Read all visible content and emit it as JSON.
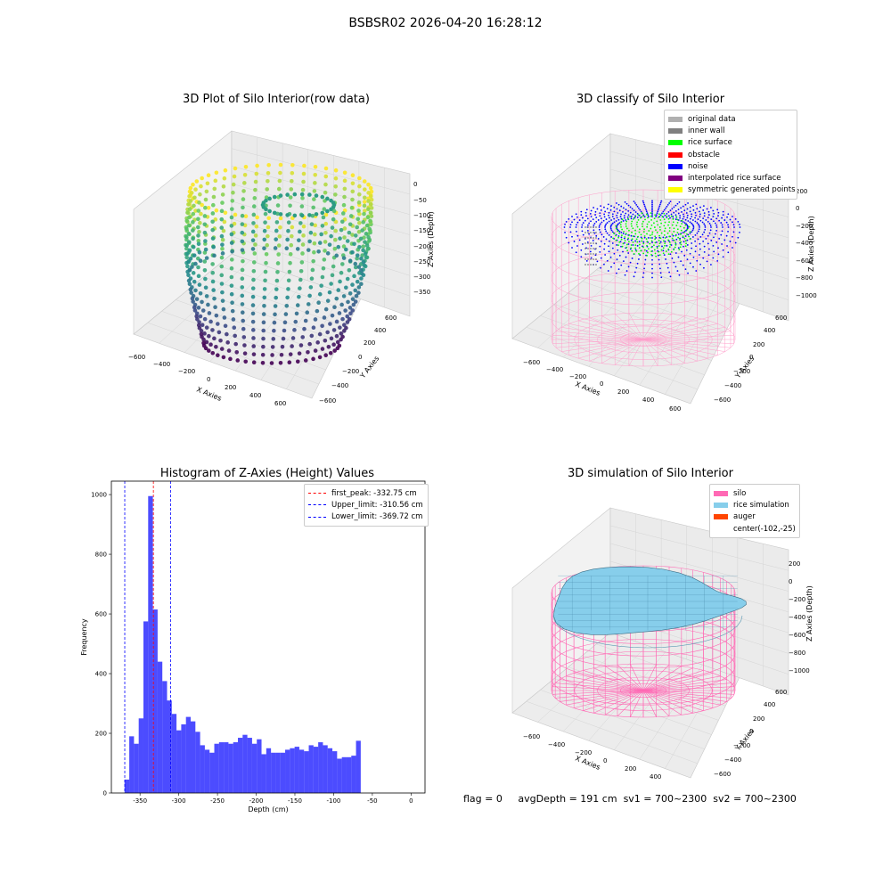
{
  "figure": {
    "suptitle": "BSBSR02 2026-04-20 16:28:12",
    "footer": {
      "flag": "flag = 0",
      "avg_depth": "avgDepth = 191 cm",
      "sv1": "sv1 = 700~2300",
      "sv2": "sv2 = 700~2300"
    }
  },
  "panels": {
    "raw": {
      "title": "3D Plot of Silo Interior(row data)",
      "xlabel": "X Axies",
      "ylabel": "Y Axies",
      "zlabel": "Z Axies (Depth)",
      "xticks": [
        "−600",
        "−400",
        "−200",
        "0",
        "200",
        "400",
        "600"
      ],
      "yticks": [
        "−600",
        "−400",
        "−200",
        "0",
        "200",
        "400",
        "600"
      ],
      "zticks": [
        "0",
        "−50",
        "−100",
        "−150",
        "−200",
        "−250",
        "−300",
        "−350"
      ]
    },
    "classify": {
      "title": "3D classify of Silo Interior",
      "xlabel": "X Axies",
      "ylabel": "Y Axies",
      "zlabel": "Z Axies (Depth)",
      "xticks": [
        "−600",
        "−400",
        "−200",
        "0",
        "200",
        "400",
        "600"
      ],
      "yticks": [
        "−600",
        "−400",
        "−200",
        "0",
        "200",
        "400",
        "600"
      ],
      "zticks": [
        "200",
        "0",
        "−200",
        "−400",
        "−600",
        "−800",
        "−1000"
      ],
      "legend": [
        {
          "label": "original data",
          "color": "#b0b0b0"
        },
        {
          "label": "inner wall",
          "color": "#808080"
        },
        {
          "label": "rice surface",
          "color": "#00ff00"
        },
        {
          "label": "obstacle",
          "color": "#ff0000"
        },
        {
          "label": "noise",
          "color": "#0000ff"
        },
        {
          "label": "interpolated rice surface",
          "color": "#800080"
        },
        {
          "label": "symmetric generated points",
          "color": "#ffff00"
        }
      ]
    },
    "simulation": {
      "title": "3D simulation of Silo Interior",
      "xlabel": "X Axies",
      "ylabel": "Y Axies",
      "zlabel": "Z Axies (Depth)",
      "xticks": [
        "−600",
        "−400",
        "−200",
        "0",
        "200",
        "400"
      ],
      "yticks": [
        "−600",
        "−400",
        "−200",
        "0",
        "200",
        "400",
        "600"
      ],
      "zticks": [
        "200",
        "0",
        "−200",
        "−400",
        "−600",
        "−800",
        "−1000"
      ],
      "legend": [
        {
          "label": "silo",
          "color": "#ff69b4"
        },
        {
          "label": "rice simulation",
          "color": "#87ceeb"
        },
        {
          "label": "auger",
          "color": "#ff4500"
        },
        {
          "label": "center(-102,-25)",
          "color": ""
        }
      ]
    }
  },
  "chart_data": {
    "type": "bar",
    "title": "Histogram of Z-Axies (Height) Values",
    "xlabel": "Depth (cm)",
    "ylabel": "Frequency",
    "xlim": [
      -387,
      18
    ],
    "ylim": [
      0,
      1045
    ],
    "bin_start": -370,
    "bin_width": 6.1,
    "values": [
      45,
      190,
      165,
      250,
      575,
      995,
      615,
      440,
      375,
      310,
      265,
      210,
      230,
      255,
      240,
      205,
      160,
      145,
      135,
      165,
      170,
      170,
      165,
      170,
      185,
      195,
      185,
      165,
      180,
      130,
      150,
      135,
      135,
      135,
      145,
      150,
      155,
      145,
      140,
      160,
      155,
      170,
      160,
      150,
      140,
      115,
      120,
      120,
      125,
      175
    ],
    "xticks": [
      -350,
      -300,
      -250,
      -200,
      -150,
      -100,
      -50,
      0
    ],
    "yticks": [
      0,
      200,
      400,
      600,
      800,
      1000
    ],
    "bar_color": "#0000ff",
    "bar_alpha": 0.7,
    "vlines": [
      {
        "label": "first_peak: -332.75 cm",
        "x": -332.75,
        "color": "#ff0000"
      },
      {
        "label": "Upper_limit: -310.56 cm",
        "x": -310.56,
        "color": "#0000ff"
      },
      {
        "label": "Lower_limit: -369.72 cm",
        "x": -369.72,
        "color": "#0000ff"
      }
    ],
    "legend_loc": "upper right"
  }
}
